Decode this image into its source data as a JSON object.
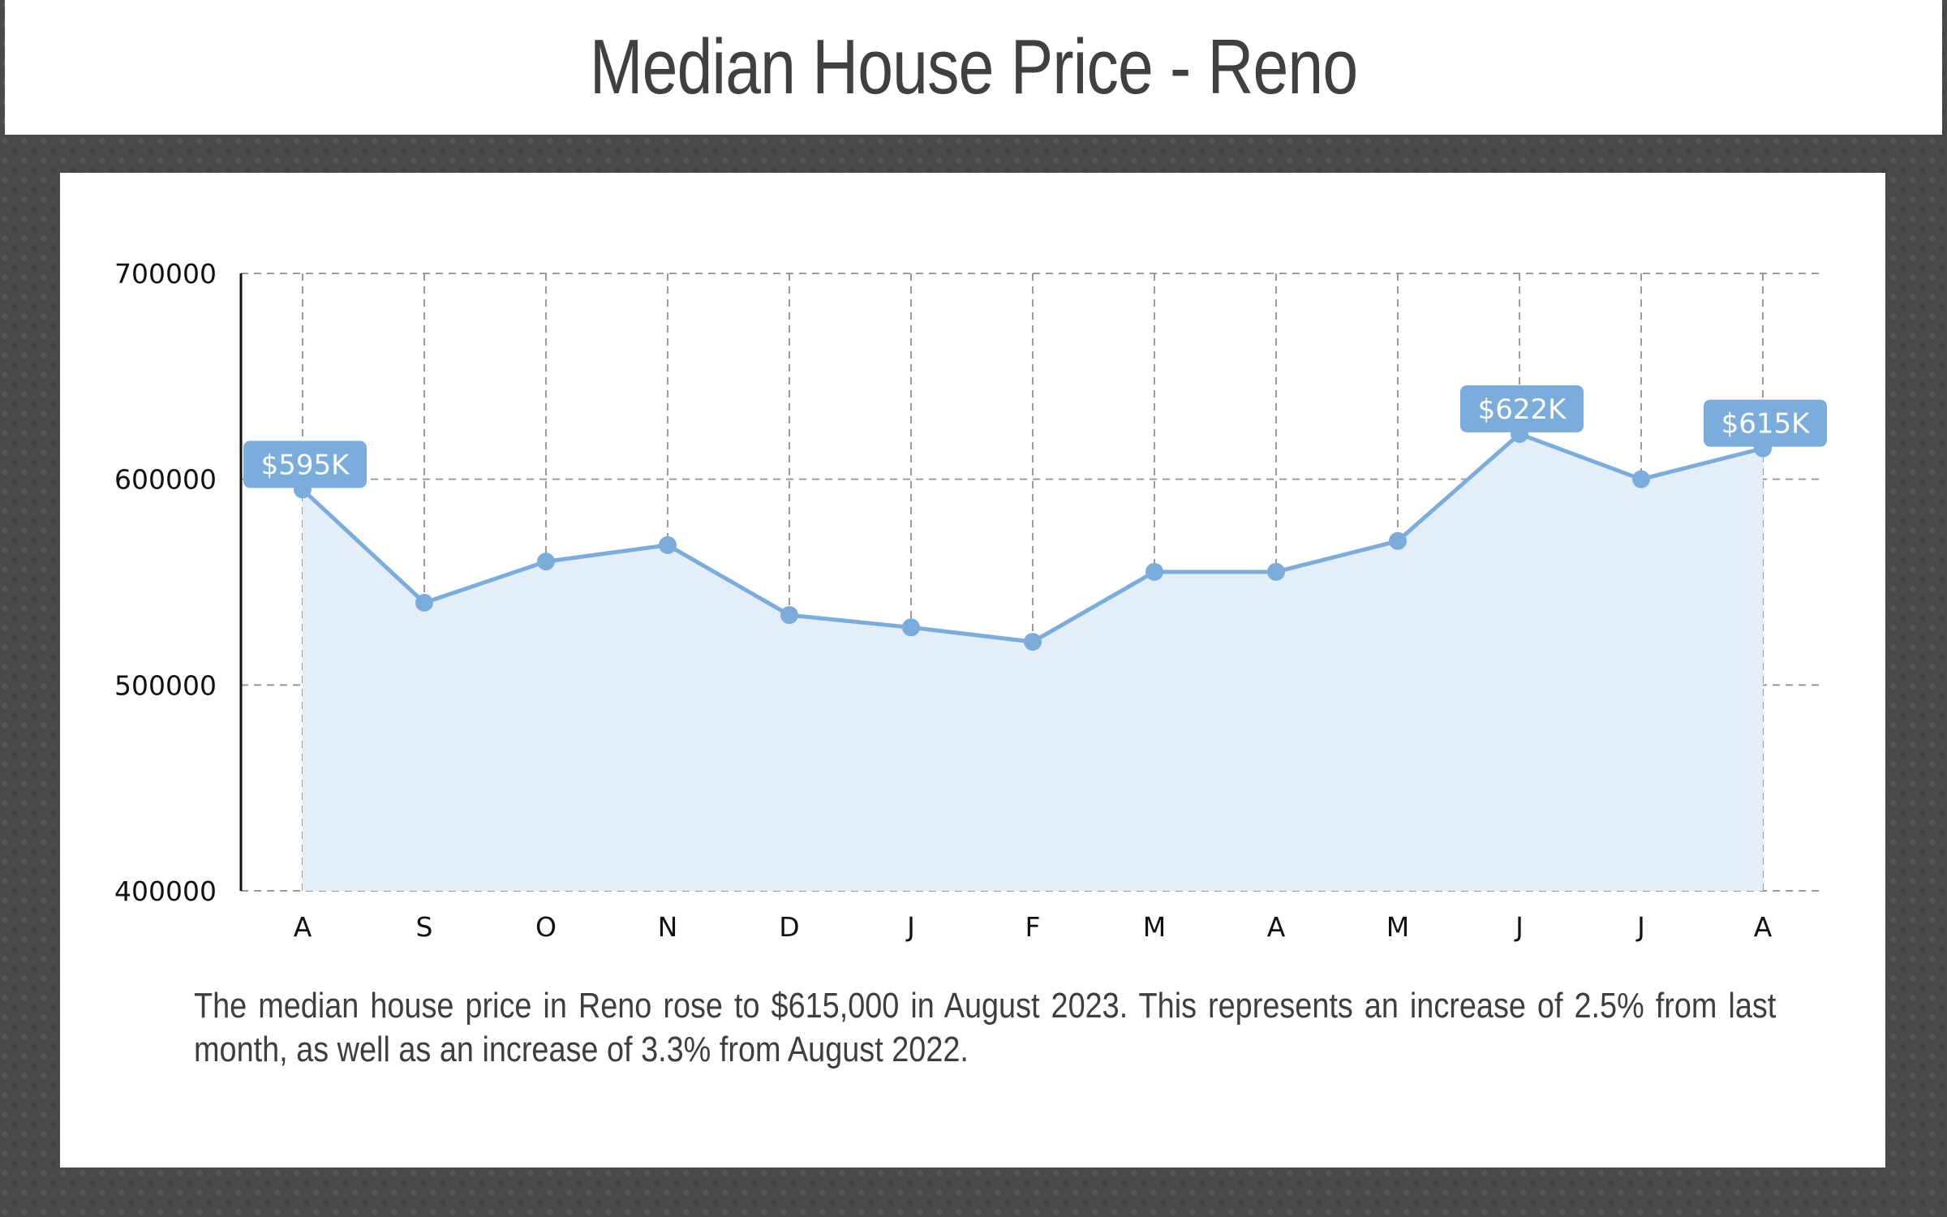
{
  "header": {
    "title": "Median House Price - Reno"
  },
  "chart_data": {
    "type": "area",
    "title": "Median House Price - Reno",
    "categories": [
      "A",
      "S",
      "O",
      "N",
      "D",
      "J",
      "F",
      "M",
      "A",
      "M",
      "J",
      "J",
      "A"
    ],
    "series": [
      {
        "values": [
          595000,
          540000,
          560000,
          568000,
          534000,
          528000,
          521000,
          555000,
          555000,
          570000,
          622000,
          600000,
          615000
        ]
      }
    ],
    "ylim": [
      400000,
      700000
    ],
    "yticks": [
      "400000",
      "500000",
      "600000",
      "700000"
    ],
    "grid": true,
    "data_labels": [
      {
        "index": 0,
        "text": "$595K"
      },
      {
        "index": 10,
        "text": "$622K"
      },
      {
        "index": 12,
        "text": "$615K"
      }
    ],
    "colors": {
      "line": "#7aaddc",
      "fill": "#e4eef8",
      "label_bg": "#7aaddc",
      "grid": "#999999"
    }
  },
  "caption": "The median house price in Reno rose to $615,000 in August 2023.  This represents an increase of 2.5% from last month, as well as an increase of 3.3% from August 2022."
}
